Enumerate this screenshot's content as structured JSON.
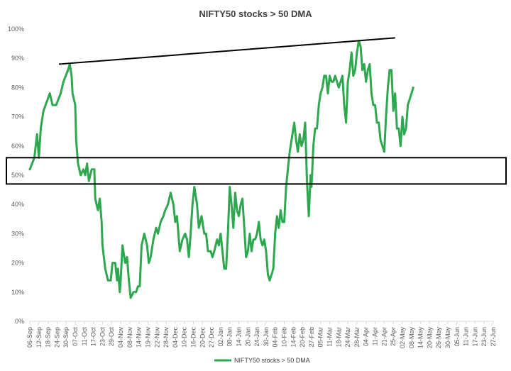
{
  "chart_data": {
    "type": "line",
    "title": "NIFTY50 stocks > 50 DMA",
    "xlabel": "",
    "ylabel": "",
    "ylim": [
      0,
      100
    ],
    "y_tick_values": [
      0,
      10,
      20,
      30,
      40,
      50,
      60,
      70,
      80,
      90,
      100
    ],
    "y_tick_labels": [
      "0%",
      "10%",
      "20%",
      "30%",
      "40%",
      "50%",
      "60%",
      "70%",
      "80%",
      "90%",
      "100%"
    ],
    "x_tick_labels": [
      "06-Sep",
      "12-Sep",
      "18-Sep",
      "24-Sep",
      "30-Sep",
      "07-Oct",
      "11-Oct",
      "17-Oct",
      "23-Oct",
      "29-Oct",
      "04-Nov",
      "08-Nov",
      "14-Nov",
      "19-Nov",
      "22-Nov",
      "28-Nov",
      "04-Dec",
      "10-Dec",
      "16-Dec",
      "20-Dec",
      "27-Dec",
      "02-Jan",
      "08-Jan",
      "14-Jan",
      "20-Jan",
      "24-Jan",
      "30-Jan",
      "04-Feb",
      "10-Feb",
      "14-Feb",
      "20-Feb",
      "27-Feb",
      "05-Mar",
      "11-Mar",
      "18-Mar",
      "24-Mar",
      "28-Mar",
      "04-Apr",
      "11-Apr",
      "21-Apr",
      "25-Apr",
      "02-May",
      "08-May",
      "14-May",
      "20-May",
      "26-May",
      "30-May",
      "05-Jun",
      "11-Jun",
      "17-Jun",
      "23-Jun",
      "27-Jun"
    ],
    "grid": false,
    "legend_position": "bottom",
    "series": [
      {
        "name": "NIFTY50 stocks > 50 DMA",
        "color": "#2ea84f",
        "points": [
          [
            0,
            52
          ],
          [
            0.5,
            56
          ],
          [
            0.8,
            64
          ],
          [
            1.0,
            56
          ],
          [
            1.2,
            66
          ],
          [
            1.5,
            72
          ],
          [
            2.2,
            78
          ],
          [
            2.5,
            74
          ],
          [
            2.9,
            74
          ],
          [
            3.4,
            78
          ],
          [
            3.7,
            82
          ],
          [
            4.2,
            86
          ],
          [
            4.4,
            88
          ],
          [
            4.6,
            84
          ],
          [
            4.7,
            78
          ],
          [
            5.0,
            74
          ],
          [
            5.1,
            62
          ],
          [
            5.3,
            54
          ],
          [
            5.6,
            50
          ],
          [
            5.9,
            52
          ],
          [
            6.1,
            50
          ],
          [
            6.3,
            54
          ],
          [
            6.5,
            48
          ],
          [
            6.8,
            52
          ],
          [
            7.1,
            52
          ],
          [
            7.2,
            42
          ],
          [
            7.5,
            38
          ],
          [
            7.7,
            42
          ],
          [
            7.9,
            34
          ],
          [
            8.0,
            26
          ],
          [
            8.3,
            18
          ],
          [
            8.6,
            14
          ],
          [
            8.9,
            14
          ],
          [
            9.1,
            20
          ],
          [
            9.4,
            20
          ],
          [
            9.6,
            14
          ],
          [
            9.7,
            18
          ],
          [
            9.9,
            10
          ],
          [
            10.0,
            14
          ],
          [
            10.2,
            26
          ],
          [
            10.5,
            20
          ],
          [
            10.7,
            22
          ],
          [
            10.9,
            14
          ],
          [
            11.1,
            8
          ],
          [
            11.4,
            10
          ],
          [
            11.7,
            10
          ],
          [
            11.9,
            12
          ],
          [
            12.1,
            12
          ],
          [
            12.3,
            26
          ],
          [
            12.6,
            30
          ],
          [
            12.9,
            26
          ],
          [
            13.1,
            20
          ],
          [
            13.3,
            22
          ],
          [
            13.6,
            28
          ],
          [
            13.9,
            32
          ],
          [
            14.1,
            30
          ],
          [
            14.4,
            34
          ],
          [
            14.7,
            36
          ],
          [
            14.9,
            38
          ],
          [
            15.2,
            40
          ],
          [
            15.5,
            44
          ],
          [
            15.8,
            40
          ],
          [
            16.0,
            34
          ],
          [
            16.2,
            36
          ],
          [
            16.5,
            24
          ],
          [
            16.8,
            28
          ],
          [
            17.1,
            30
          ],
          [
            17.3,
            28
          ],
          [
            17.5,
            22
          ],
          [
            17.7,
            30
          ],
          [
            17.9,
            40
          ],
          [
            18.1,
            46
          ],
          [
            18.4,
            40
          ],
          [
            18.6,
            32
          ],
          [
            18.9,
            36
          ],
          [
            19.2,
            30
          ],
          [
            19.4,
            30
          ],
          [
            19.6,
            24
          ],
          [
            19.9,
            24
          ],
          [
            20.1,
            22
          ],
          [
            20.3,
            24
          ],
          [
            20.6,
            28
          ],
          [
            20.8,
            26
          ],
          [
            21.0,
            30
          ],
          [
            21.2,
            24
          ],
          [
            21.4,
            18
          ],
          [
            21.6,
            18
          ],
          [
            21.8,
            30
          ],
          [
            22.0,
            46
          ],
          [
            22.2,
            40
          ],
          [
            22.4,
            32
          ],
          [
            22.6,
            44
          ],
          [
            22.8,
            38
          ],
          [
            23.0,
            36
          ],
          [
            23.2,
            40
          ],
          [
            23.4,
            42
          ],
          [
            23.6,
            32
          ],
          [
            23.8,
            22
          ],
          [
            24.0,
            24
          ],
          [
            24.2,
            30
          ],
          [
            24.4,
            24
          ],
          [
            24.6,
            28
          ],
          [
            24.8,
            28
          ],
          [
            25.0,
            30
          ],
          [
            25.2,
            34
          ],
          [
            25.4,
            28
          ],
          [
            25.6,
            26
          ],
          [
            25.8,
            28
          ],
          [
            26.0,
            24
          ],
          [
            26.2,
            16
          ],
          [
            26.4,
            14
          ],
          [
            26.6,
            16
          ],
          [
            26.8,
            18
          ],
          [
            27.0,
            30
          ],
          [
            27.2,
            36
          ],
          [
            27.4,
            32
          ],
          [
            27.6,
            38
          ],
          [
            27.8,
            34
          ],
          [
            28.0,
            34
          ],
          [
            28.2,
            46
          ],
          [
            28.4,
            52
          ],
          [
            28.6,
            58
          ],
          [
            28.8,
            62
          ],
          [
            29.0,
            66
          ],
          [
            29.1,
            68
          ],
          [
            29.3,
            62
          ],
          [
            29.5,
            58
          ],
          [
            29.7,
            64
          ],
          [
            29.9,
            60
          ],
          [
            30.1,
            62
          ],
          [
            30.3,
            68
          ],
          [
            30.5,
            48
          ],
          [
            30.7,
            36
          ],
          [
            30.9,
            50
          ],
          [
            31.0,
            46
          ],
          [
            31.2,
            60
          ],
          [
            31.4,
            66
          ],
          [
            31.6,
            66
          ],
          [
            31.8,
            74
          ],
          [
            32.0,
            78
          ],
          [
            32.2,
            80
          ],
          [
            32.4,
            84
          ],
          [
            32.6,
            84
          ],
          [
            32.8,
            78
          ],
          [
            33.0,
            84
          ],
          [
            33.2,
            82
          ],
          [
            33.4,
            82
          ],
          [
            33.6,
            84
          ],
          [
            33.8,
            82
          ],
          [
            34.0,
            80
          ],
          [
            34.2,
            82
          ],
          [
            34.4,
            84
          ],
          [
            34.6,
            74
          ],
          [
            34.8,
            68
          ],
          [
            35.0,
            82
          ],
          [
            35.2,
            86
          ],
          [
            35.4,
            92
          ],
          [
            35.6,
            84
          ],
          [
            35.8,
            86
          ],
          [
            36.0,
            92
          ],
          [
            36.2,
            96
          ],
          [
            36.4,
            94
          ],
          [
            36.6,
            86
          ],
          [
            36.8,
            88
          ],
          [
            37.0,
            82
          ],
          [
            37.2,
            86
          ],
          [
            37.4,
            88
          ],
          [
            37.6,
            78
          ],
          [
            37.8,
            74
          ],
          [
            38.0,
            74
          ],
          [
            38.2,
            68
          ],
          [
            38.4,
            68
          ],
          [
            38.6,
            62
          ],
          [
            38.8,
            60
          ],
          [
            39.0,
            58
          ],
          [
            39.2,
            70
          ],
          [
            39.4,
            80
          ],
          [
            39.6,
            86
          ],
          [
            39.8,
            86
          ],
          [
            40.0,
            72
          ],
          [
            40.2,
            78
          ],
          [
            40.4,
            66
          ],
          [
            40.6,
            66
          ],
          [
            40.8,
            60
          ],
          [
            41.0,
            70
          ],
          [
            41.2,
            64
          ],
          [
            41.4,
            66
          ],
          [
            41.6,
            74
          ],
          [
            41.8,
            76
          ],
          [
            42.0,
            78
          ],
          [
            42.2,
            80
          ]
        ]
      }
    ],
    "annotations": [
      {
        "type": "trendline",
        "from": [
          3.2,
          88
        ],
        "to": [
          40.2,
          97
        ],
        "color": "#000000"
      },
      {
        "type": "band",
        "y_from": 47,
        "y_to": 56,
        "color": "#000000"
      }
    ]
  }
}
